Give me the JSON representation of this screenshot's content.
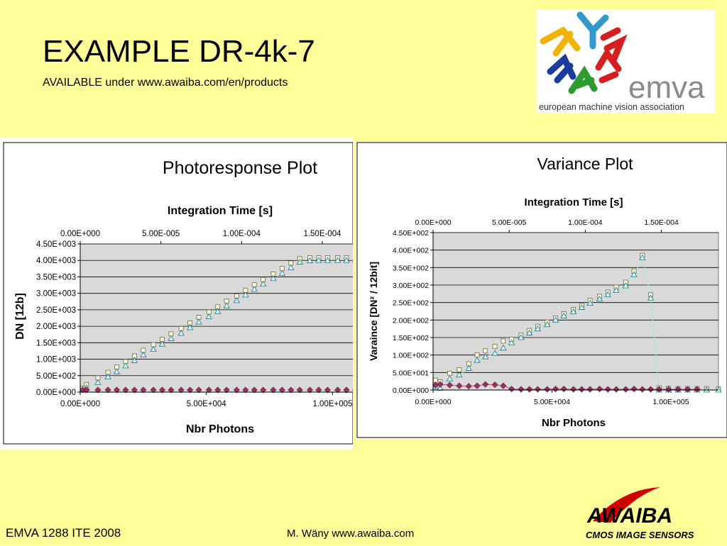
{
  "slide": {
    "title": "EXAMPLE DR-4k-7",
    "subtitle": "AVAILABLE under www.awaiba.com/en/products"
  },
  "footer": {
    "left": "EMVA 1288 ITE 2008",
    "center": "M. Wäny www.awaiba.com"
  },
  "emva_logo": {
    "word": "emva",
    "caption": "european machine vision association"
  },
  "awaiba_logo": {
    "word": "AWAIBA",
    "tagline": "CMOS IMAGE SENSORS",
    "color": "#cc0000"
  },
  "colors": {
    "plot_bg": "#d9d9d9",
    "variance_series": "#ffffcc",
    "dark_series": "#993366",
    "fit_series": "#ccffff"
  },
  "chart_data": [
    {
      "type": "scatter",
      "title": "Photoresponse Plot",
      "xlabel": "Nbr Photons",
      "ylabel": "DN [12b]",
      "x2label": "Integration Time [s]",
      "xlim": [
        0,
        110000
      ],
      "ylim": [
        0,
        4500
      ],
      "x2lim": [
        0,
        0.000172
      ],
      "xticks": [
        "0.00E+000",
        "5.00E+004",
        "1.00E+005"
      ],
      "yticks": [
        "0.00E+000",
        "5.00E+002",
        "1.00E+003",
        "1.50E+003",
        "2.00E+003",
        "2.50E+003",
        "3.00E+003",
        "3.50E+003",
        "4.00E+003",
        "4.50E+003"
      ],
      "x2ticks": [
        "0.00E+000",
        "5.00E-005",
        "1.00E-004",
        "1.50E-004"
      ],
      "grid": true,
      "series": [
        {
          "x": [
            1000,
            2500,
            7000,
            11000,
            14500,
            18000,
            21500,
            25000,
            29000,
            32500,
            36000,
            40000,
            43500,
            47000,
            51000,
            54500,
            58000,
            62000,
            65500,
            69000,
            72500,
            76500,
            80000,
            83500,
            87000,
            91000,
            94500,
            98000,
            102000,
            105500,
            109000
          ],
          "y": [
            120,
            230,
            430,
            600,
            760,
            930,
            1100,
            1270,
            1440,
            1600,
            1770,
            1930,
            2100,
            2270,
            2430,
            2590,
            2760,
            2920,
            3090,
            3260,
            3420,
            3590,
            3750,
            3920,
            4050,
            4080,
            4080,
            4080,
            4080,
            4080,
            4080
          ]
        },
        {
          "x": [
            1000,
            2500,
            7000,
            11000,
            14500,
            18000,
            21500,
            25000,
            29000,
            32500,
            36000,
            40000,
            43500,
            47000,
            51000,
            54500,
            58000,
            62000,
            65500,
            69000,
            72500,
            76500,
            80000,
            83500,
            87000,
            91000,
            94500,
            98000,
            102000,
            105500,
            109000
          ],
          "y": [
            80,
            130,
            290,
            460,
            620,
            800,
            960,
            1130,
            1300,
            1460,
            1630,
            1790,
            1960,
            2130,
            2290,
            2450,
            2620,
            2780,
            2950,
            3120,
            3280,
            3450,
            3610,
            3780,
            3950,
            3990,
            4000,
            4000,
            4000,
            4000,
            4000
          ]
        },
        {
          "x": [
            1000,
            2500,
            7000,
            11000,
            14500,
            18000,
            21500,
            25000,
            29000,
            32500,
            36000,
            40000,
            43500,
            47000,
            51000,
            54500,
            58000,
            62000,
            65500,
            69000,
            72500,
            76500,
            80000,
            83500,
            87000,
            91000,
            94500,
            98000,
            102000,
            105500,
            109000
          ],
          "y": [
            65,
            65,
            65,
            65,
            65,
            65,
            65,
            65,
            65,
            65,
            65,
            65,
            65,
            65,
            65,
            65,
            65,
            65,
            65,
            65,
            65,
            65,
            65,
            65,
            65,
            65,
            65,
            65,
            65,
            65,
            65
          ]
        }
      ]
    },
    {
      "type": "scatter",
      "title": "Variance Plot",
      "xlabel": "Nbr Photons",
      "ylabel": "Varaince [DN² / 12bit]",
      "x2label": "Integration Time [s]",
      "xlim": [
        0,
        120000
      ],
      "ylim": [
        0,
        450
      ],
      "x2lim": [
        0,
        0.0001875
      ],
      "xticks": [
        "0.00E+000",
        "5.00E+004",
        "1.00E+005"
      ],
      "yticks": [
        "0.00E+000",
        "5.00E+001",
        "1.00E+002",
        "1.50E+002",
        "2.00E+002",
        "2.50E+002",
        "3.00E+002",
        "3.50E+002",
        "4.00E+002",
        "4.50E+002"
      ],
      "x2ticks": [
        "0.00E+000",
        "5.00E-005",
        "1.00E-004",
        "1.50E-004"
      ],
      "grid": true,
      "series": [
        {
          "x": [
            1000,
            3000,
            7000,
            11000,
            15000,
            18500,
            22000,
            26000,
            29500,
            33000,
            37000,
            40500,
            44000,
            48000,
            51500,
            55000,
            59000,
            62500,
            66000,
            70000,
            73500,
            77000,
            81000,
            84500,
            88000,
            91500,
            95000,
            99000,
            103000,
            107000,
            111000,
            115000,
            120000
          ],
          "y": [
            28,
            23,
            48,
            58,
            75,
            100,
            112,
            125,
            140,
            145,
            157,
            170,
            182,
            194,
            206,
            218,
            230,
            242,
            256,
            268,
            280,
            294,
            308,
            340,
            385,
            272,
            6,
            5,
            4,
            4,
            4,
            4,
            3
          ]
        },
        {
          "x": [
            1000,
            3000,
            7000,
            11000,
            15000,
            18500,
            22000,
            26000,
            29500,
            33000,
            37000,
            40500,
            44000,
            48000,
            51500,
            55000,
            59000,
            62500,
            66000,
            70000,
            73500,
            77000,
            81000,
            84500,
            88000,
            91500,
            95000,
            99000,
            103000,
            107000,
            111000,
            115000,
            120000
          ],
          "y": [
            10,
            5,
            32,
            43,
            62,
            85,
            95,
            105,
            120,
            135,
            150,
            163,
            175,
            187,
            200,
            212,
            224,
            236,
            248,
            260,
            273,
            285,
            298,
            330,
            378,
            263,
            0,
            0,
            0,
            0,
            0,
            0,
            0
          ]
        },
        {
          "x": [
            1000,
            3000,
            7000,
            11000,
            15000,
            18500,
            22000,
            26000,
            29500,
            33000,
            37000,
            40500,
            44000,
            48000,
            51500,
            55000,
            59000,
            62500,
            66000,
            70000,
            73500,
            77000,
            81000,
            84500,
            88000,
            91500,
            95000,
            99000,
            103000,
            107000,
            111000
          ],
          "y": [
            14,
            16,
            14,
            12,
            11,
            12,
            16,
            15,
            12,
            3,
            2,
            2,
            2,
            2,
            3,
            3,
            2,
            2,
            2,
            3,
            2,
            2,
            2,
            3,
            2,
            2,
            2,
            2,
            2,
            2,
            2
          ]
        }
      ]
    }
  ]
}
